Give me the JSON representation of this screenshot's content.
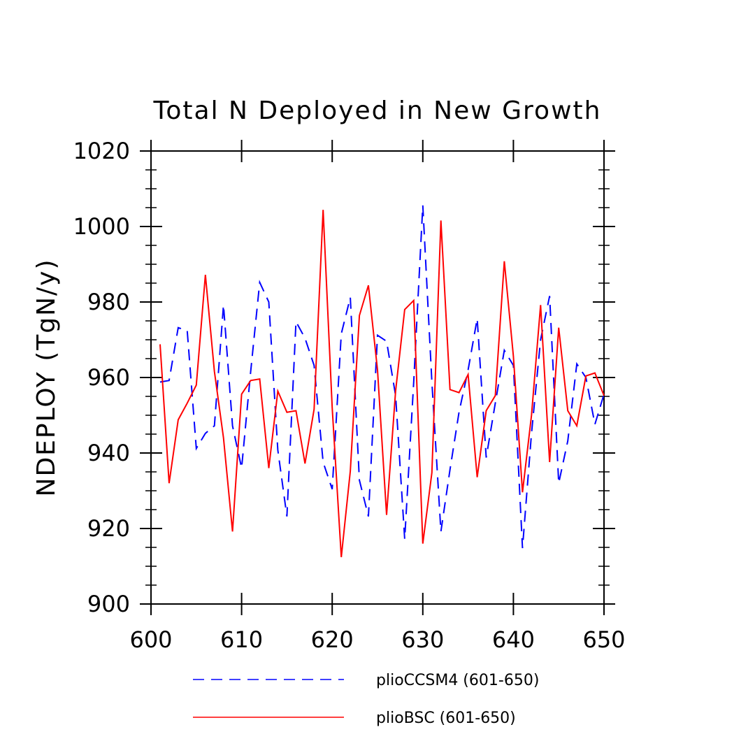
{
  "chart_data": {
    "type": "line",
    "title": "Total N Deployed in New Growth",
    "xlabel": "",
    "ylabel": "NDEPLOY  (TgN/y)",
    "xlim": [
      600,
      650
    ],
    "ylim": [
      900,
      1020
    ],
    "x_ticks": [
      600,
      610,
      620,
      630,
      640,
      650
    ],
    "x_tick_labels": [
      "600",
      "610",
      "620",
      "630",
      "640",
      "650"
    ],
    "y_ticks": [
      900,
      920,
      940,
      960,
      980,
      1000,
      1020
    ],
    "y_tick_labels": [
      "900",
      "920",
      "940",
      "960",
      "980",
      "1000",
      "1020"
    ],
    "grid": false,
    "legend_position": "bottom",
    "x": [
      601,
      602,
      603,
      604,
      605,
      606,
      607,
      608,
      609,
      610,
      611,
      612,
      613,
      614,
      615,
      616,
      617,
      618,
      619,
      620,
      621,
      622,
      623,
      624,
      625,
      626,
      627,
      628,
      629,
      630,
      631,
      632,
      633,
      634,
      635,
      636,
      637,
      638,
      639,
      640,
      641,
      642,
      643,
      644,
      645,
      646,
      647,
      648,
      649,
      650
    ],
    "series": [
      {
        "name": "plioCCSM4 (601-650)",
        "color": "#0000ff",
        "style": "dashed",
        "values": [
          958.8,
          959.2,
          973.2,
          972.4,
          941.2,
          945.2,
          947.2,
          979.2,
          947.2,
          936.0,
          961.6,
          985.2,
          980.0,
          940.8,
          923.2,
          974.8,
          970.4,
          963.2,
          937.6,
          930.4,
          971.6,
          981.2,
          932.8,
          923.2,
          971.2,
          969.6,
          955.2,
          917.2,
          958.8,
          1005.6,
          958.8,
          919.2,
          935.6,
          950.8,
          962.0,
          975.6,
          938.8,
          953.2,
          967.2,
          963.2,
          914.8,
          945.2,
          970.0,
          981.6,
          932.0,
          943.2,
          963.6,
          960.0,
          947.6,
          955.6
        ]
      },
      {
        "name": "plioBSC (601-650)",
        "color": "#ff0000",
        "style": "solid",
        "values": [
          968.8,
          932.0,
          948.8,
          953.2,
          958.0,
          987.2,
          961.6,
          944.0,
          919.2,
          955.6,
          959.2,
          959.6,
          936.0,
          956.4,
          950.8,
          951.2,
          937.2,
          951.6,
          1004.4,
          952.0,
          912.4,
          935.2,
          976.4,
          984.4,
          962.0,
          923.6,
          956.4,
          978.0,
          980.4,
          916.0,
          934.8,
          1001.6,
          956.8,
          956.0,
          960.8,
          933.6,
          951.2,
          955.2,
          990.8,
          965.6,
          929.6,
          950.0,
          979.2,
          937.6,
          973.2,
          951.2,
          947.2,
          960.4,
          961.2,
          955.2
        ]
      }
    ]
  }
}
